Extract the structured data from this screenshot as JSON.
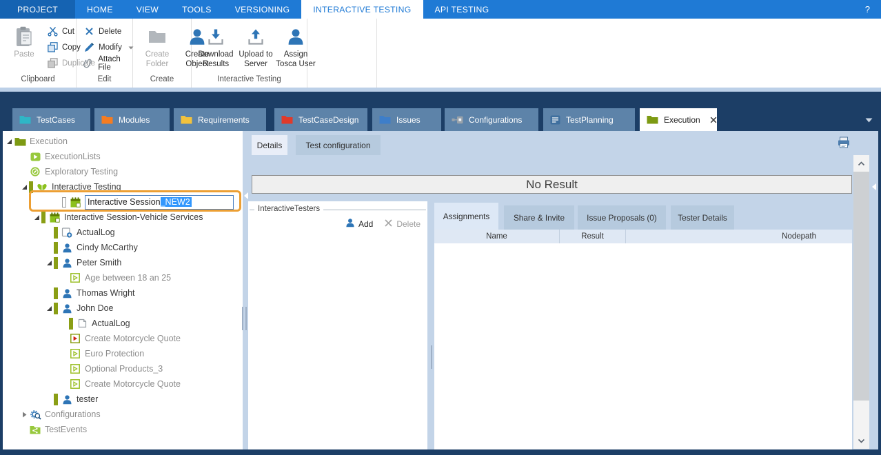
{
  "titlebar_menu": {
    "items": [
      {
        "label": "PROJECT",
        "kind": "backstage"
      },
      {
        "label": "HOME"
      },
      {
        "label": "VIEW"
      },
      {
        "label": "TOOLS"
      },
      {
        "label": "VERSIONING"
      },
      {
        "label": "INTERACTIVE TESTING",
        "active": true
      },
      {
        "label": "API TESTING"
      }
    ],
    "help": "?"
  },
  "ribbon": {
    "groups": [
      {
        "label": "Clipboard",
        "buttons": [
          {
            "label": "Paste",
            "icon": "clipboard-icon",
            "size": "large",
            "disabled": true
          },
          {
            "label": "Cut",
            "icon": "scissors-icon",
            "size": "small"
          },
          {
            "label": "Copy",
            "icon": "copy-icon",
            "size": "small"
          },
          {
            "label": "Duplicate",
            "icon": "duplicate-icon",
            "size": "small",
            "disabled": true
          }
        ]
      },
      {
        "label": "Edit",
        "buttons": [
          {
            "label": "Delete",
            "icon": "delete-x-icon",
            "size": "small"
          },
          {
            "label": "Modify",
            "icon": "pencil-icon",
            "size": "small",
            "dropdown": true
          },
          {
            "label": "Attach File",
            "icon": "paperclip-icon",
            "size": "small"
          }
        ]
      },
      {
        "label": "Create",
        "buttons": [
          {
            "label": "Create Folder",
            "icon": "folder-gray-icon",
            "size": "large",
            "disabled": true
          },
          {
            "label": "Create Object",
            "icon": "person-icon",
            "size": "large"
          }
        ]
      },
      {
        "label": "Interactive Testing",
        "buttons": [
          {
            "label": "Download Results",
            "icon": "download-icon",
            "size": "large"
          },
          {
            "label": "Upload to Server",
            "icon": "upload-icon",
            "size": "large"
          },
          {
            "label": "Assign Tosca User",
            "icon": "person-icon",
            "size": "large"
          }
        ]
      }
    ]
  },
  "workspace_tabs": {
    "tabs": [
      {
        "label": "TestCases",
        "icon": "folder",
        "color": "#2fb6c6"
      },
      {
        "label": "Modules",
        "icon": "folder",
        "color": "#f57c21"
      },
      {
        "label": "Requirements",
        "icon": "folder",
        "color": "#f2c23d"
      },
      {
        "label": "TestCaseDesign",
        "icon": "folder",
        "color": "#e03a2a"
      },
      {
        "label": "Issues",
        "icon": "folder",
        "color": "#3e7ec9"
      },
      {
        "label": "Configurations",
        "icon": "config",
        "color": "#99a2aa"
      },
      {
        "label": "TestPlanning",
        "icon": "testplan",
        "color": "#3f6f9e"
      },
      {
        "label": "Execution",
        "icon": "folder",
        "color": "#7d9a13",
        "active": true,
        "closable": true
      }
    ]
  },
  "tree": {
    "items": [
      {
        "label": "Execution",
        "level": 0,
        "icon": "folder-olive",
        "state": "expanded",
        "muted": true
      },
      {
        "label": "ExecutionLists",
        "level": 1,
        "icon": "execution-list",
        "muted": true
      },
      {
        "label": "Exploratory Testing",
        "level": 1,
        "icon": "exploratory",
        "muted": true
      },
      {
        "label": "Interactive Testing",
        "level": 1,
        "icon": "interactive-hands",
        "state": "expanded",
        "bar": true
      },
      {
        "label_prefix": "Interactive Session",
        "label_selected": "_NEW2",
        "level": 2,
        "icon": "session-calendar",
        "edit": true,
        "bar": "outline",
        "pad": 72
      },
      {
        "label": "Interactive Session-Vehicle Services",
        "level": 2,
        "icon": "session-calendar",
        "state": "expanded",
        "bar": true
      },
      {
        "label": "ActualLog",
        "level": 3,
        "icon": "log-add",
        "bar": true
      },
      {
        "label": "Cindy McCarthy",
        "level": 3,
        "icon": "person",
        "bar": true
      },
      {
        "label": "Peter Smith",
        "level": 3,
        "icon": "person",
        "state": "expanded",
        "bar": true
      },
      {
        "label": "Age between 18 an 25",
        "level": 4,
        "icon": "play-outline",
        "muted": true
      },
      {
        "label": "Thomas Wright",
        "level": 3,
        "icon": "person",
        "bar": true
      },
      {
        "label": "John Doe",
        "level": 3,
        "icon": "person",
        "state": "expanded",
        "bar": true
      },
      {
        "label": "ActualLog",
        "level": 4,
        "icon": "log",
        "bar": true
      },
      {
        "label": "Create Motorcycle Quote",
        "level": 4,
        "icon": "play-red",
        "muted": true
      },
      {
        "label": "Euro Protection",
        "level": 4,
        "icon": "play-outline",
        "muted": true
      },
      {
        "label": "Optional Products_3",
        "level": 4,
        "icon": "play-outline",
        "muted": true
      },
      {
        "label": "Create Motorcycle Quote",
        "level": 4,
        "icon": "play-outline",
        "muted": true
      },
      {
        "label": "tester",
        "level": 3,
        "icon": "person",
        "bar": true
      },
      {
        "label": "Configurations",
        "level": 1,
        "icon": "gear-search",
        "state": "collapsed",
        "muted": true
      },
      {
        "label": "TestEvents",
        "level": 1,
        "icon": "share-folder",
        "muted": true
      }
    ]
  },
  "details_panel": {
    "tabs": [
      {
        "label": "Details",
        "active": true
      },
      {
        "label": "Test configuration"
      }
    ],
    "no_result_text": "No Result",
    "testers_group": {
      "title": "InteractiveTesters",
      "add_label": "Add",
      "delete_label": "Delete",
      "delete_disabled": true
    },
    "assignment_tabs": [
      {
        "label": "Assignments",
        "active": true
      },
      {
        "label": "Share & Invite"
      },
      {
        "label": "Issue Proposals (0)"
      },
      {
        "label": "Tester Details"
      }
    ],
    "table_columns": [
      "Name",
      "Result",
      "Nodepath"
    ]
  },
  "colors": {
    "accent_blue": "#1f7ad5",
    "navy": "#1c3e66",
    "content_blue": "#c3d4e8",
    "olive": "#7d9a13",
    "leaf_green": "#97c83c",
    "person_blue": "#2e75b6",
    "highlight_orange": "#ec9f33",
    "selection_blue": "#3297fd"
  }
}
